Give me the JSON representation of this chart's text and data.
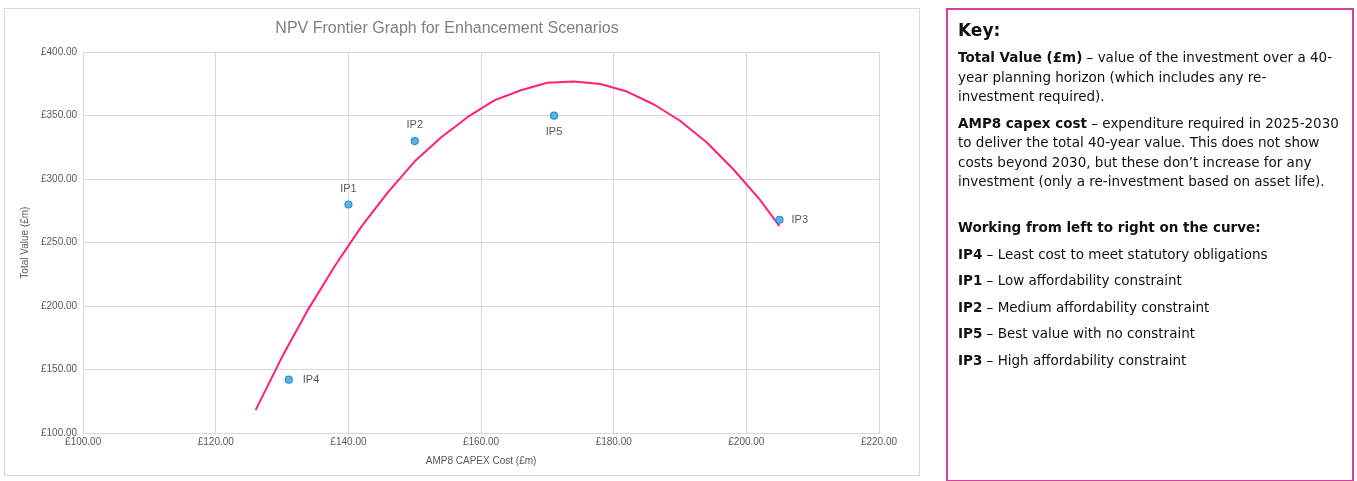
{
  "chart_data": [
    {
      "type": "scatter",
      "title": "NPV Frontier Graph for Enhancement Scenarios",
      "xlabel": "AMP8 CAPEX Cost (£m)",
      "ylabel": "Total Value (£m)",
      "xlim": [
        100,
        220
      ],
      "xticks": [
        {
          "value": 100,
          "label": "£100.00"
        },
        {
          "value": 120,
          "label": "£120.00"
        },
        {
          "value": 140,
          "label": "£140.00"
        },
        {
          "value": 160,
          "label": "£160.00"
        },
        {
          "value": 180,
          "label": "£180.00"
        },
        {
          "value": 200,
          "label": "£200.00"
        },
        {
          "value": 220,
          "label": "£220.00"
        }
      ],
      "ylim": [
        100,
        400
      ],
      "yticks": [
        {
          "value": 100,
          "label": "£100.00"
        },
        {
          "value": 150,
          "label": "£150.00"
        },
        {
          "value": 200,
          "label": "£200.00"
        },
        {
          "value": 250,
          "label": "£250.00"
        },
        {
          "value": 300,
          "label": "£300.00"
        },
        {
          "value": 350,
          "label": "£350.00"
        },
        {
          "value": 400,
          "label": "£400.00"
        }
      ],
      "grid": true,
      "legend": false,
      "marker": "circle",
      "series": [
        {
          "type": "scatter",
          "color": "#5ab4ea",
          "x": [
            131,
            140,
            150,
            171,
            205
          ],
          "values": [
            142,
            280,
            330,
            350,
            268
          ]
        },
        {
          "type": "line",
          "color": "#ff1f7a",
          "marker": "none",
          "x": [
            126,
            130,
            134,
            138,
            142,
            146,
            150,
            154,
            158,
            162,
            166,
            170,
            174,
            178,
            182,
            186,
            190,
            194,
            198,
            202,
            205
          ],
          "values": [
            118,
            160,
            198,
            232,
            263,
            290,
            314,
            333,
            349,
            362,
            370,
            376,
            377,
            375,
            369,
            359,
            346,
            329,
            308,
            284,
            263
          ]
        }
      ],
      "annotations": [
        {
          "text": "IP4",
          "x": 131,
          "y": 142
        },
        {
          "text": "IP1",
          "x": 140,
          "y": 280
        },
        {
          "text": "IP2",
          "x": 150,
          "y": 330
        },
        {
          "text": "IP5",
          "x": 171,
          "y": 350
        },
        {
          "text": "IP3",
          "x": 205,
          "y": 268
        }
      ]
    },
    {
      "type": "other",
      "title": "Key:",
      "annotations": [
        "Total Value (£m) – value of the investment over a 40-year planning horizon (which includes any re-investment required).",
        "AMP8 capex cost – expenditure required in 2025-2030 to deliver the total 40-year value. This does not show costs beyond 2030, but these don’t increase for any investment (only a re-investment based on asset life).",
        "Working from left to right on the curve:",
        "IP4 – Least cost to meet statutory obligations",
        "IP1 – Low affordability constraint",
        "IP2 – Medium affordability constraint",
        "IP5 – Best value with no constraint",
        "IP3 – High affordability constraint"
      ]
    }
  ]
}
